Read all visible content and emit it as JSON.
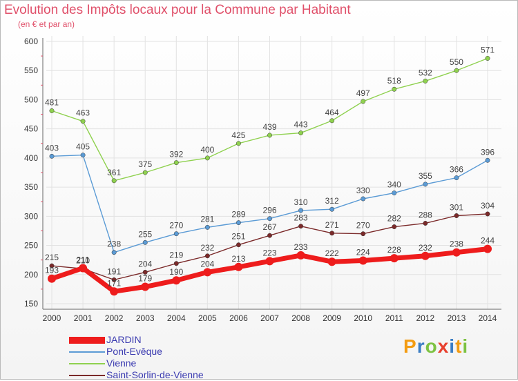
{
  "header": {
    "title": "Evolution des Impôts locaux pour la Commune par Habitant",
    "subtitle": "(en € et par an)"
  },
  "logo": {
    "text": "Proxiti",
    "letters": [
      "P",
      "r",
      "o",
      "x",
      "i",
      "t",
      "i"
    ],
    "colors": [
      "#f39c12",
      "#3b7dc4",
      "#7dc242",
      "#e8412f",
      "#3b7dc4",
      "#f39c12",
      "#7dc242"
    ]
  },
  "chart_data": {
    "type": "line",
    "title": "Evolution des Impôts locaux pour la Commune par Habitant",
    "subtitle": "(en € et par an)",
    "xlabel": "",
    "ylabel": "",
    "x": [
      "2000",
      "2001",
      "2002",
      "2003",
      "2004",
      "2005",
      "2006",
      "2007",
      "2008",
      "2009",
      "2010",
      "2011",
      "2012",
      "2013",
      "2014"
    ],
    "ylim": [
      150,
      600
    ],
    "yticks": [
      "150",
      "200",
      "250",
      "300",
      "350",
      "400",
      "450",
      "500",
      "550",
      "600"
    ],
    "grid": true,
    "legend_position": "bottom-left",
    "series": [
      {
        "name": "JARDIN",
        "color": "#ee1c1c",
        "values": [
          193,
          211,
          171,
          179,
          190,
          204,
          213,
          223,
          233,
          222,
          224,
          228,
          232,
          238,
          244
        ]
      },
      {
        "name": "Pont-Evêque",
        "color": "#5b9bd5",
        "values": [
          403,
          405,
          238,
          255,
          270,
          281,
          289,
          296,
          310,
          312,
          330,
          340,
          355,
          366,
          396
        ]
      },
      {
        "name": "Vienne",
        "color": "#8fd14f",
        "values": [
          481,
          463,
          361,
          375,
          392,
          400,
          425,
          439,
          443,
          464,
          497,
          518,
          532,
          550,
          571
        ]
      },
      {
        "name": "Saint-Sorlin-de-Vienne",
        "color": "#7b2a2a",
        "values": [
          215,
          210,
          191,
          204,
          219,
          232,
          251,
          267,
          283,
          271,
          270,
          282,
          288,
          301,
          304
        ]
      }
    ]
  }
}
